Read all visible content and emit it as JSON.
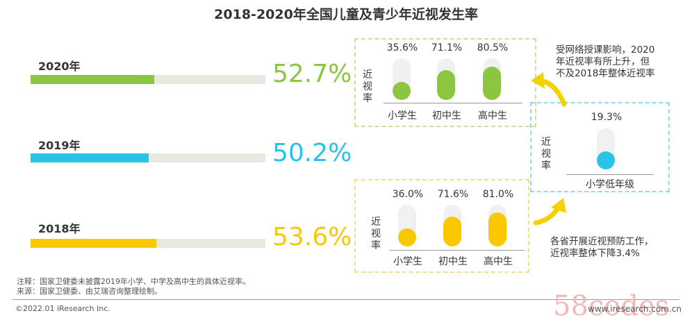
{
  "title": "2018-2020年全国儿童及青少年近视发生率",
  "colors": {
    "green": "#8cc63f",
    "blue": "#29c3e8",
    "yellow": "#f9c800",
    "track": "#e8e8e0",
    "capsule_bg": "#f0f0f0",
    "arrow": "#f2d200"
  },
  "chart_data": [
    {
      "type": "bar",
      "title": "",
      "categories": [
        "2020年",
        "2019年",
        "2018年"
      ],
      "values": [
        52.7,
        50.2,
        53.6
      ],
      "value_labels": [
        "52.7%",
        "50.2%",
        "53.6%"
      ],
      "xlim": [
        0,
        100
      ]
    },
    {
      "type": "bar",
      "ylabel": "近视率",
      "categories": [
        "小学生",
        "初中生",
        "高中生"
      ],
      "values": [
        35.6,
        71.1,
        80.5
      ],
      "value_labels": [
        "35.6%",
        "71.1%",
        "80.5%"
      ],
      "ylim": [
        0,
        100
      ]
    },
    {
      "type": "bar",
      "ylabel": "近视率",
      "categories": [
        "小学生",
        "初中生",
        "高中生"
      ],
      "values": [
        36.0,
        71.6,
        81.0
      ],
      "value_labels": [
        "36.0%",
        "71.6%",
        "81.0%"
      ],
      "ylim": [
        0,
        100
      ]
    },
    {
      "type": "bar",
      "ylabel": "近视率",
      "categories": [
        "小学低年级"
      ],
      "values": [
        19.3
      ],
      "value_labels": [
        "19.3%"
      ],
      "ylim": [
        0,
        100
      ]
    }
  ],
  "annotations": {
    "top": [
      "受网络授课影响，2020",
      "年近视率有所上升，但",
      "不及2018年整体近视率"
    ],
    "bottom": [
      "各省开展近视预防工作，",
      "近视率整体下降3.4%"
    ]
  },
  "notes": {
    "note": "注释：国家卫健委未披露2019年小学、中学及高中生的具体近视率。",
    "source": "来源：国家卫健委、由艾瑞咨询整理绘制。"
  },
  "footer": {
    "copyright": "©2022.01 iResearch Inc.",
    "website": "www.iresearch.com.cn",
    "watermark": "58codes"
  }
}
